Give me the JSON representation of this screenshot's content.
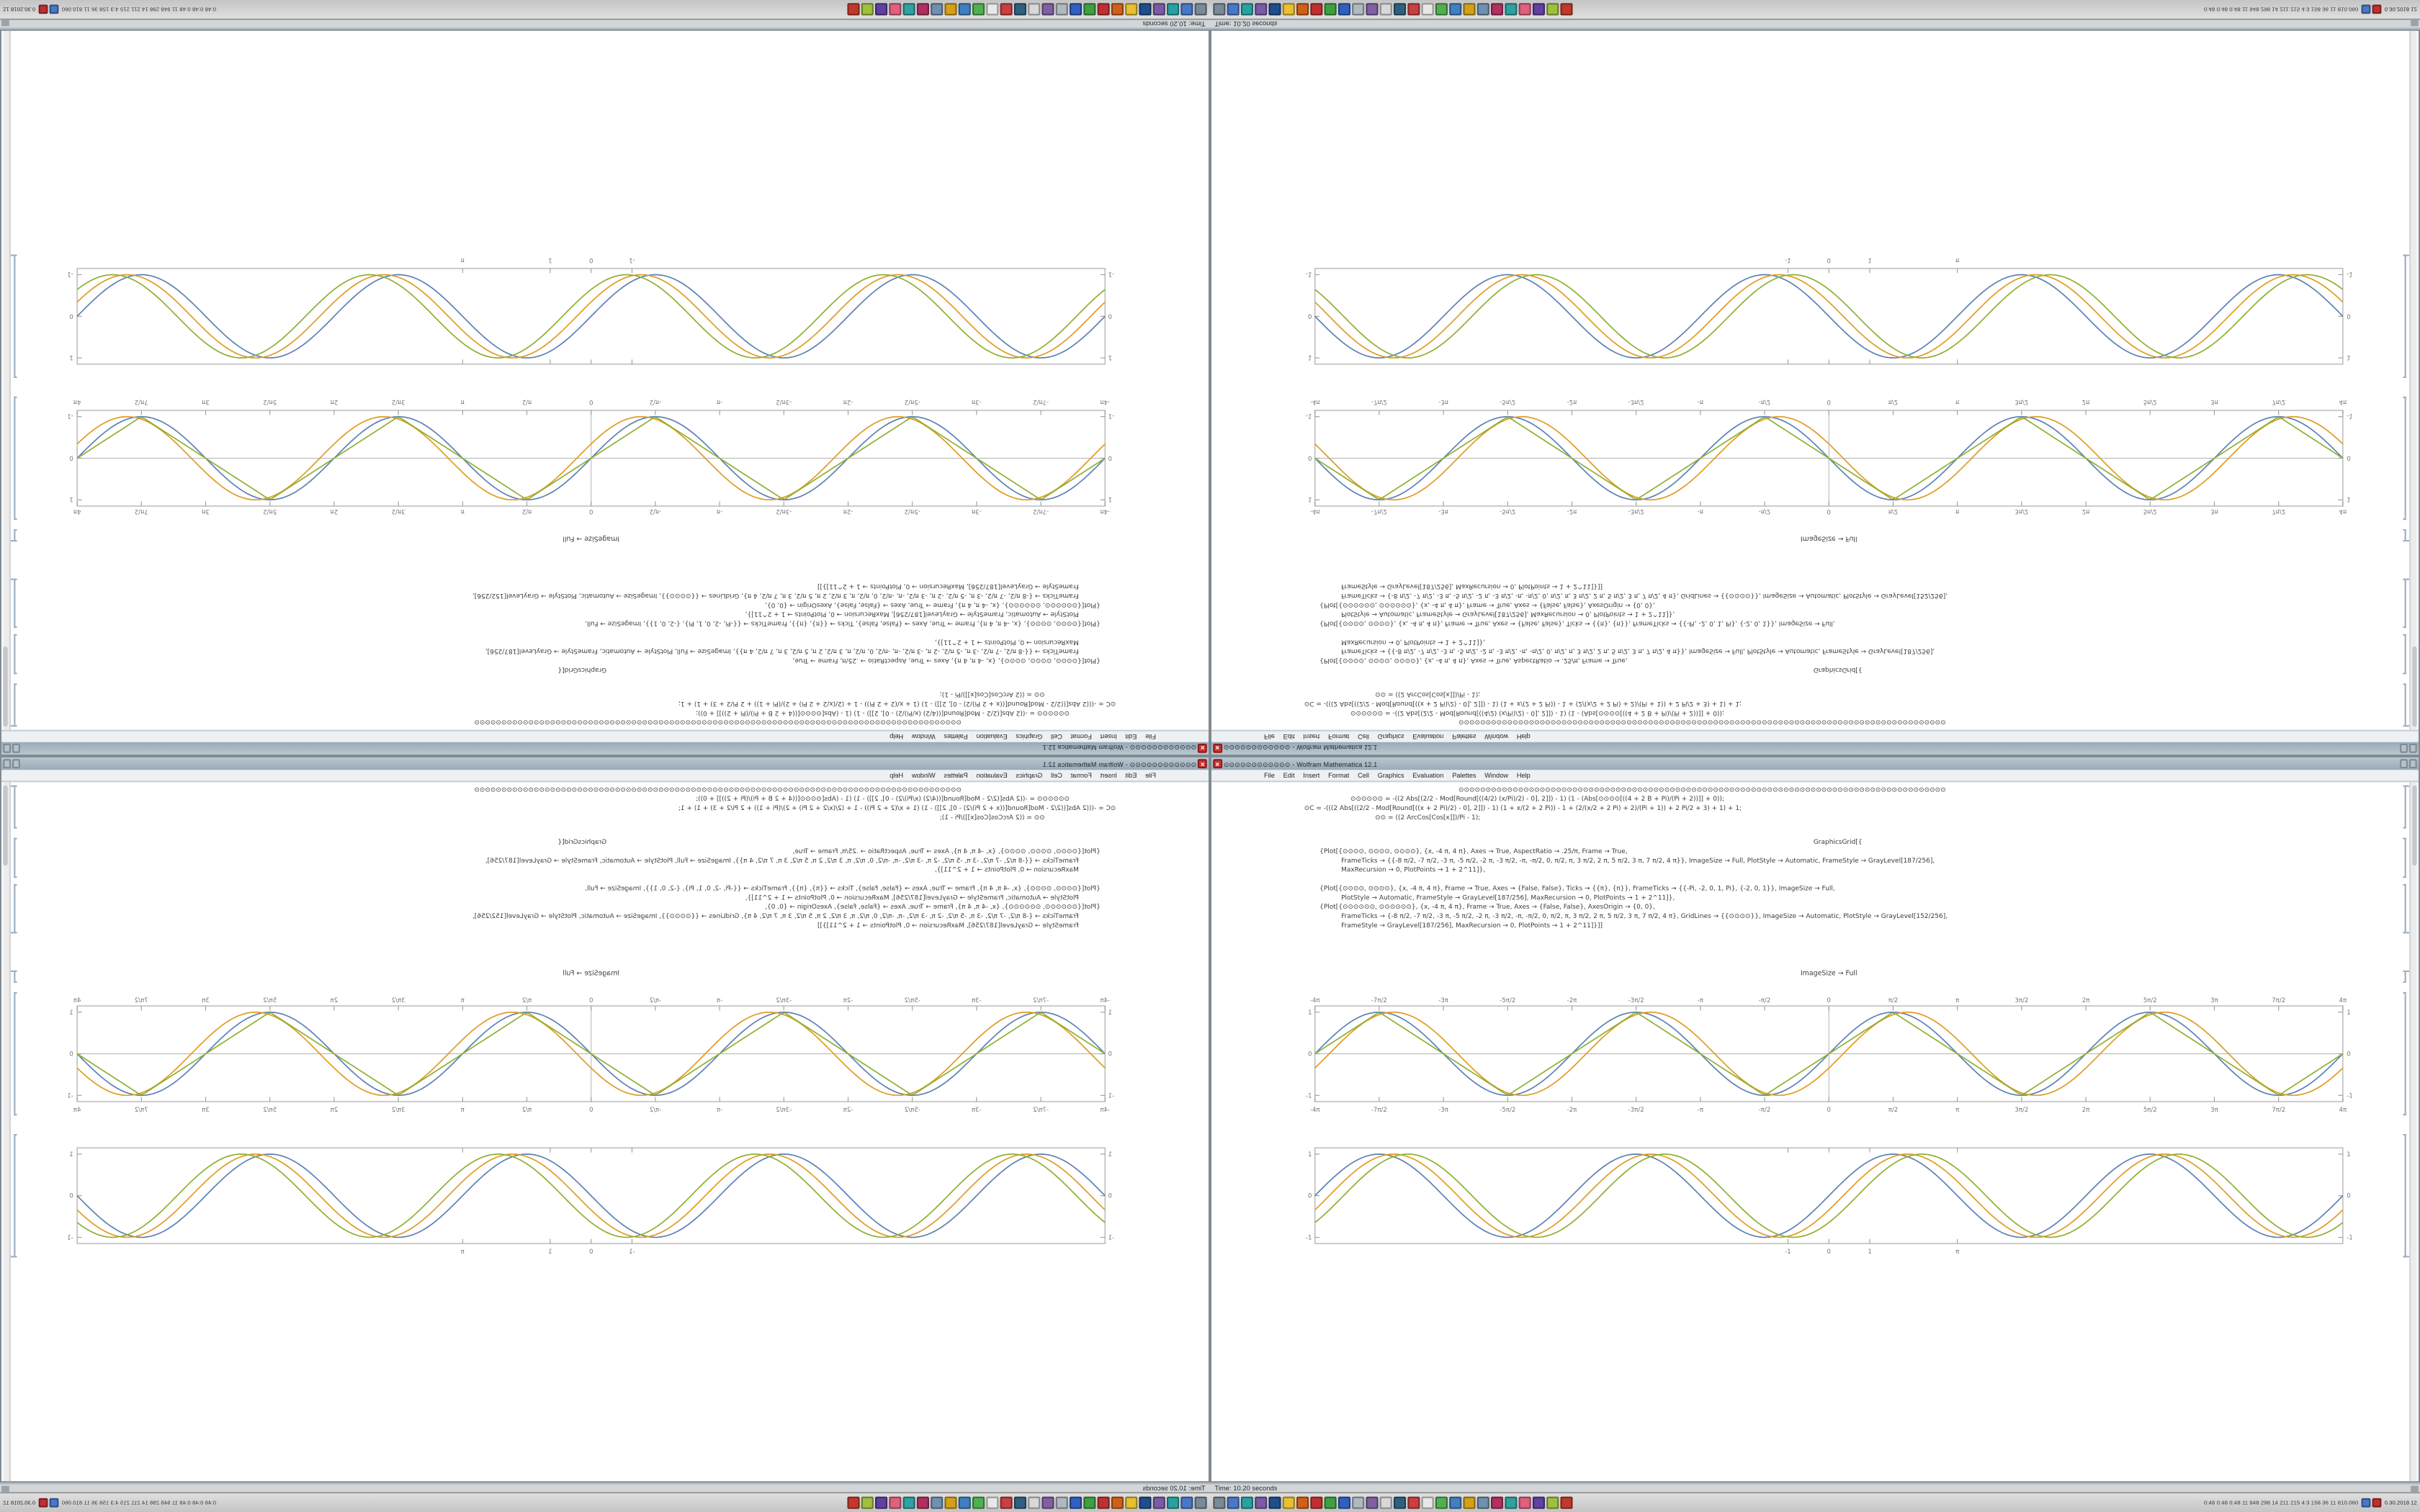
{
  "desktop": {
    "window": {
      "title": "⊙⊙⊙⊙⊙⊙⊙⊙⊙⊙⊙⊙ - Wolfram Mathematica 12.1",
      "close_label": "×",
      "menu_items": [
        "File",
        "Edit",
        "Insert",
        "Format",
        "Cell",
        "Graphics",
        "Evaluation",
        "Palettes",
        "Window",
        "Help"
      ],
      "cells": {
        "block1_lines": [
          {
            "i": 100,
            "t": "⊙⊙⊙⊙⊙⊙⊙⊙⊙⊙⊙⊙⊙⊙⊙⊙⊙⊙⊙⊙⊙⊙⊙⊙⊙⊙⊙⊙⊙⊙⊙⊙⊙⊙⊙⊙⊙⊙⊙⊙⊙⊙⊙⊙⊙⊙⊙⊙⊙⊙⊙⊙⊙⊙⊙⊙⊙⊙⊙⊙⊙⊙⊙⊙⊙⊙⊙⊙⊙⊙⊙⊙⊙⊙⊙⊙⊙⊙⊙⊙⊙⊙⊙⊙⊙⊙⊙⊙⊙⊙"
          },
          {
            "i": 30,
            "t": "⊙⊙⊙⊙⊙⊙ = -((2 Abs[(2/2 - Mod[Round[((4/2) (x/Pi)/2) - 0], 2]]) - 1) (1 - (Abs[⊙⊙⊙⊙[((4 + 2 B + Pi)/(Pi + 2))]] + 0));"
          },
          {
            "i": 0,
            "t": "⊙C = -(((2 Abs[((2/2 - Mod[Round[((x + 2 Pi)/2) - 0], 2]]) - 1) (1 + x/(2 + 2 Pi)) - 1 + (2/(x/2 + 2 Pi) + 2)/(Pi + 1)) + 2 Pi/2 + 3) + 1) + 1;"
          },
          {
            "i": 46,
            "t": "⊙⊙ = ((2 ArcCos[Cos[x]])/Pi - 1);"
          }
        ],
        "block2_lines": [
          {
            "i": 330,
            "t": "GraphicsGrid[{"
          },
          {
            "i": 10,
            "t": "{Plot[{⊙⊙⊙⊙, ⊙⊙⊙⊙, ⊙⊙⊙⊙}, {x, -4 π, 4 π}, Axes → True, AspectRatio → .25/π, Frame → True,"
          },
          {
            "i": 24,
            "t": "FrameTicks → {{-8 π/2, -7 π/2, -3 π, -5 π/2, -2 π, -3 π/2, -π, -π/2, 0, π/2, π, 3 π/2, 2 π, 5 π/2, 3 π, 7 π/2, 4 π}}, ImageSize → Full, PlotStyle → Automatic, FrameStyle → GrayLevel[187/256],"
          },
          {
            "i": 24,
            "t": "MaxRecursion → 0, PlotPoints → 1 + 2^11]},"
          }
        ],
        "block3_lines": [
          {
            "i": 10,
            "t": "{Plot[{⊙⊙⊙⊙, ⊙⊙⊙⊙}, {x, -4 π, 4 π}, Frame → True, Axes → {False, False}, Ticks → {{π}, {π}}, FrameTicks → {{-Pi, -2, 0, 1, Pi}, {-2, 0, 1}}, ImageSize → Full,"
          },
          {
            "i": 24,
            "t": "PlotStyle → Automatic, FrameStyle → GrayLevel[187/256], MaxRecursion → 0, PlotPoints → 1 + 2^11]},"
          },
          {
            "i": 10,
            "t": "{Plot[{⊙⊙⊙⊙⊙⊙, ⊙⊙⊙⊙⊙⊙}, {x, -4 π, 4 π}, Frame → True, Axes → {False, False}, AxesOrigin → {0, 0},"
          },
          {
            "i": 24,
            "t": "FrameTicks → {-8 π/2, -7 π/2, -3 π, -5 π/2, -2 π, -3 π/2, -π, -π/2, 0, π/2, π, 3 π/2, 2 π, 5 π/2, 3 π, 7 π/2, 4 π}, GridLines → {{⊙⊙⊙⊙}}, ImageSize → Automatic, PlotStyle → GrayLevel[152/256],"
          },
          {
            "i": 24,
            "t": "FrameStyle → GrayLevel[187/256], MaxRecursion → 0, PlotPoints → 1 + 2^11]}]]"
          }
        ],
        "label_line": "ImageSize → Full"
      }
    },
    "status_strip": {
      "text": "Time: 10.20 seconds"
    },
    "taskbar": {
      "launcher_colors": [
        "#7a8a99",
        "#4a78c8",
        "#2aa1a1",
        "#7b5aa6",
        "#1f4e8c",
        "#e8c030",
        "#d06018",
        "#c03030",
        "#3fa040",
        "#3060c0",
        "#b0b8c0",
        "#8060a0",
        "#d8d8d8",
        "#306080",
        "#c84040",
        "#e8e8e8",
        "#50b050",
        "#4080c0",
        "#d4a017",
        "#7090b0",
        "#b03060",
        "#30a0a0",
        "#e06080",
        "#6040a0",
        "#a0c040",
        "#c0392b"
      ],
      "tray_text": "0:48 0:48 0:48 11 948 298 14 211 215 4:3 158 36 11 810.060",
      "tray_icon_colors": [
        "#4a78c8",
        "#c03030"
      ],
      "clock_text": "0.30.2018 12"
    }
  },
  "chart_data": [
    {
      "type": "line",
      "title": "",
      "xlabel": "",
      "ylabel": "",
      "frame": true,
      "axes": true,
      "grid": false,
      "labels_top": true,
      "x_range": [
        -12.566,
        12.566
      ],
      "y_range": [
        -1.15,
        1.15
      ],
      "x_ticks": [
        {
          "label": "-4π",
          "x": -12.566
        },
        {
          "label": "-7π/2",
          "x": -10.996
        },
        {
          "label": "-3π",
          "x": -9.4248
        },
        {
          "label": "-5π/2",
          "x": -7.854
        },
        {
          "label": "-2π",
          "x": -6.2832
        },
        {
          "label": "-3π/2",
          "x": -4.7124
        },
        {
          "label": "-π",
          "x": -3.1416
        },
        {
          "label": "-π/2",
          "x": -1.5708
        },
        {
          "label": "0",
          "x": 0
        },
        {
          "label": "π/2",
          "x": 1.5708
        },
        {
          "label": "π",
          "x": 3.1416
        },
        {
          "label": "3π/2",
          "x": 4.7124
        },
        {
          "label": "2π",
          "x": 6.2832
        },
        {
          "label": "5π/2",
          "x": 7.854
        },
        {
          "label": "3π",
          "x": 9.4248
        },
        {
          "label": "7π/2",
          "x": 10.996
        },
        {
          "label": "4π",
          "x": 12.566
        }
      ],
      "y_ticks": [
        {
          "label": "1",
          "y": 1
        },
        {
          "label": "0",
          "y": 0
        },
        {
          "label": "-1",
          "y": -1
        }
      ],
      "series": [
        {
          "name": "sin(x)",
          "fn": "sin",
          "phase": 0,
          "amplitude": 1,
          "color": "#5e81b5"
        },
        {
          "name": "sin(x - 0.35)",
          "fn": "sin",
          "phase": 0.35,
          "amplitude": 1,
          "color": "#e19c24"
        },
        {
          "name": "triangle(x)",
          "fn": "tri",
          "phase": 0,
          "amplitude": 1,
          "color": "#8fb032"
        }
      ]
    },
    {
      "type": "line",
      "title": "",
      "xlabel": "",
      "ylabel": "",
      "frame": true,
      "axes": false,
      "grid": false,
      "labels_top": false,
      "x_range": [
        -12.566,
        12.566
      ],
      "y_range": [
        -1.15,
        1.15
      ],
      "x_ticks": [
        {
          "label": "-1",
          "x": -1
        },
        {
          "label": "0",
          "x": 0
        },
        {
          "label": "1",
          "x": 1
        },
        {
          "label": "π",
          "x": 3.1416
        }
      ],
      "y_ticks": [
        {
          "label": "1",
          "y": 1
        },
        {
          "label": "0",
          "y": 0
        },
        {
          "label": "-1",
          "y": -1
        }
      ],
      "series": [
        {
          "name": "sin(x)",
          "fn": "sin",
          "phase": 0,
          "amplitude": 1,
          "color": "#5e81b5"
        },
        {
          "name": "sin(x - 0.35)",
          "fn": "sin",
          "phase": 0.35,
          "amplitude": 1,
          "color": "#e19c24"
        },
        {
          "name": "sin(x - 0.7)",
          "fn": "sin",
          "phase": 0.7,
          "amplitude": 1,
          "color": "#8fb032"
        }
      ]
    }
  ]
}
